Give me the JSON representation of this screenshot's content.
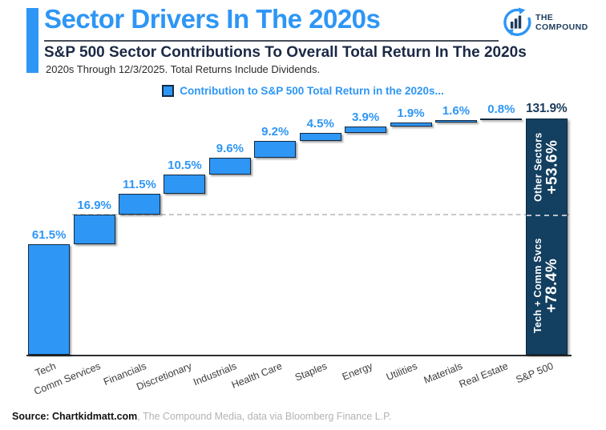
{
  "header": {
    "title": "Sector Drivers In The 2020s",
    "subtitle": "S&P 500 Sector Contributions To Overall Total Return In The 2020s",
    "note": "2020s Through 12/3/2025. Total Returns Include Dividends.",
    "logo": {
      "line1": "THE",
      "line2": "COMPOUND"
    }
  },
  "legend": {
    "label": "Contribution to S&P 500 Total Return in the 2020s..."
  },
  "chart_data": {
    "type": "bar",
    "variant": "waterfall",
    "title": "Contribution to S&P 500 Total Return in the 2020s...",
    "categories": [
      "Tech",
      "Comm Services",
      "Financials",
      "Discretionary",
      "Industrials",
      "Health Care",
      "Staples",
      "Energy",
      "Utilities",
      "Materials",
      "Real Estate"
    ],
    "values": [
      61.5,
      16.9,
      11.5,
      10.5,
      9.6,
      9.2,
      4.5,
      3.9,
      1.9,
      1.6,
      0.8
    ],
    "value_labels": [
      "61.5%",
      "16.9%",
      "11.5%",
      "10.5%",
      "9.6%",
      "9.2%",
      "4.5%",
      "3.9%",
      "1.9%",
      "1.6%",
      "0.8%"
    ],
    "total": {
      "category": "S&P 500",
      "value": 131.9,
      "value_label": "131.9%"
    },
    "annotations": [
      {
        "label": "Other Sectors",
        "value_label": "+53.6%",
        "from": 78.4,
        "to": 131.9
      },
      {
        "label": "Tech + Comm Svcs",
        "value_label": "+78.4%",
        "from": 0,
        "to": 78.4
      }
    ],
    "divider_level": 78.4,
    "xlabel": "",
    "ylabel": "",
    "ylim": [
      0,
      131.9
    ],
    "grid": false,
    "legend_position": "top-center",
    "colors": {
      "bar": "#2e96f5",
      "bar_border": "#13293d",
      "total_bar": "#133f60",
      "value_label": "#2e96f5",
      "total_value_label": "#1b3a5c",
      "dashed_line": "#c9c9c9",
      "axis": "#2e2e2e",
      "segment_text": "#ffffff"
    }
  },
  "source": {
    "bold": "Source: Chartkidmatt.com",
    "rest": ", The Compound Media, data via Bloomberg Finance L.P."
  }
}
